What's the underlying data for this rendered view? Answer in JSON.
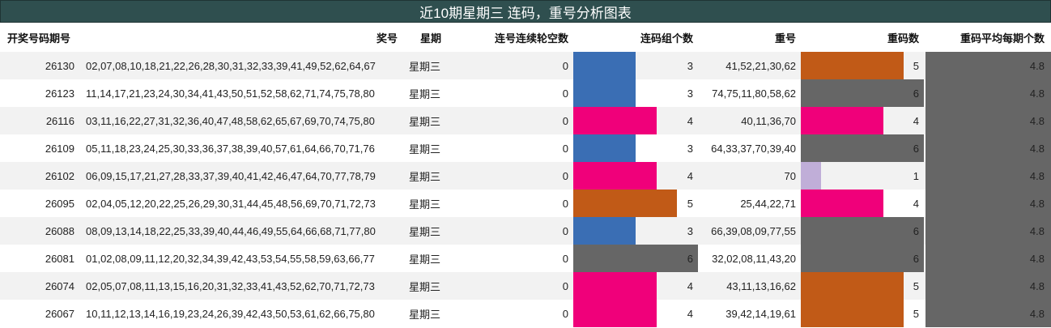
{
  "title": "近10期星期三 连码，重号分析图表",
  "columns": [
    "开奖号码期号",
    "奖号",
    "星期",
    "连号连续轮空数",
    "连码组个数",
    "重号",
    "重码数",
    "重码平均每期个数"
  ],
  "colors": {
    "title_bg": "#2f4f4f",
    "row_alt_bg": "#f2f2f2",
    "bar_3": "#3a6eb4",
    "bar_4": "#f0007a",
    "bar_5": "#c15a17",
    "bar_6": "#666666",
    "bar_1": "#c0aed8",
    "avg_bar": "#666666"
  },
  "rows": [
    {
      "issue": "26130",
      "numbers": "02,07,08,10,18,21,22,26,28,30,31,32,33,39,41,49,52,62,64,67",
      "weekday": "星期三",
      "gap": "0",
      "groups": "3",
      "repeats": "41,52,21,30,62",
      "repeat_count": "5",
      "avg": "4.8"
    },
    {
      "issue": "26123",
      "numbers": "11,14,17,21,23,24,30,34,41,43,50,51,52,58,62,71,74,75,78,80",
      "weekday": "星期三",
      "gap": "0",
      "groups": "3",
      "repeats": "74,75,11,80,58,62",
      "repeat_count": "6",
      "avg": "4.8"
    },
    {
      "issue": "26116",
      "numbers": "03,11,16,22,27,31,32,36,40,47,48,58,62,65,67,69,70,74,75,80",
      "weekday": "星期三",
      "gap": "0",
      "groups": "4",
      "repeats": "40,11,36,70",
      "repeat_count": "4",
      "avg": "4.8"
    },
    {
      "issue": "26109",
      "numbers": "05,11,18,23,24,25,30,33,36,37,38,39,40,57,61,64,66,70,71,76",
      "weekday": "星期三",
      "gap": "0",
      "groups": "3",
      "repeats": "64,33,37,70,39,40",
      "repeat_count": "6",
      "avg": "4.8"
    },
    {
      "issue": "26102",
      "numbers": "06,09,15,17,21,27,28,33,37,39,40,41,42,46,47,64,70,77,78,79",
      "weekday": "星期三",
      "gap": "0",
      "groups": "4",
      "repeats": "70",
      "repeat_count": "1",
      "avg": "4.8"
    },
    {
      "issue": "26095",
      "numbers": "02,04,05,12,20,22,25,26,29,30,31,44,45,48,56,69,70,71,72,73",
      "weekday": "星期三",
      "gap": "0",
      "groups": "5",
      "repeats": "25,44,22,71",
      "repeat_count": "4",
      "avg": "4.8"
    },
    {
      "issue": "26088",
      "numbers": "08,09,13,14,18,22,25,33,39,40,44,46,49,55,64,66,68,71,77,80",
      "weekday": "星期三",
      "gap": "0",
      "groups": "3",
      "repeats": "66,39,08,09,77,55",
      "repeat_count": "6",
      "avg": "4.8"
    },
    {
      "issue": "26081",
      "numbers": "01,02,08,09,11,12,20,32,34,39,42,43,53,54,55,58,59,63,66,77",
      "weekday": "星期三",
      "gap": "0",
      "groups": "6",
      "repeats": "32,02,08,11,43,20",
      "repeat_count": "6",
      "avg": "4.8"
    },
    {
      "issue": "26074",
      "numbers": "02,05,07,08,11,13,15,16,20,31,32,33,41,43,52,62,70,71,72,73",
      "weekday": "星期三",
      "gap": "0",
      "groups": "4",
      "repeats": "43,11,13,16,62",
      "repeat_count": "5",
      "avg": "4.8"
    },
    {
      "issue": "26067",
      "numbers": "10,11,12,13,14,16,19,23,24,26,39,42,43,50,53,61,62,66,75,80",
      "weekday": "星期三",
      "gap": "0",
      "groups": "4",
      "repeats": "39,42,14,19,61",
      "repeat_count": "5",
      "avg": "4.8"
    }
  ]
}
